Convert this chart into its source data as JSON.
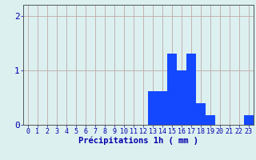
{
  "values": [
    0,
    0,
    0,
    0,
    0,
    0,
    0,
    0,
    0,
    0,
    0,
    0,
    0,
    0.62,
    0.62,
    1.3,
    1.0,
    1.3,
    0.4,
    0.18,
    0,
    0,
    0,
    0.18
  ],
  "xlabel": "Précipitations 1h ( mm )",
  "ylim": [
    0,
    2.2
  ],
  "yticks": [
    0,
    1,
    2
  ],
  "bar_color": "#1448ff",
  "background_color": "#dcf0f0",
  "grid_color": "#c0a8a8",
  "axis_color": "#555555",
  "tick_color": "#0000aa",
  "xlabel_color": "#0000aa",
  "xlabel_fontsize": 7.5,
  "tick_fontsize": 6.0,
  "ytick_fontsize": 8.0
}
